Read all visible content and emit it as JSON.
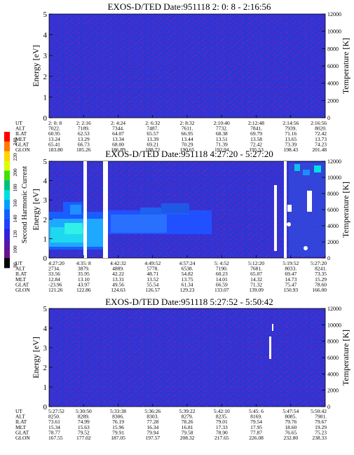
{
  "colorbar": {
    "label": "Second Harmonic Current",
    "ticks": [
      "240",
      "220",
      "200",
      "180",
      "160",
      "140",
      "120",
      "100",
      "80"
    ],
    "colors": [
      "#ff0000",
      "#ff7a00",
      "#ffd400",
      "#d8ff00",
      "#40e000",
      "#00c080",
      "#00e0e0",
      "#00a0ff",
      "#1060ff",
      "#2040ff",
      "#3020e0",
      "#501ab0",
      "#6a1090",
      "#000000"
    ]
  },
  "chart_data": [
    {
      "type": "heatmap",
      "title": "EXOS-D/TED   Date:951118  2: 0: 8 - 2:16:56",
      "ylabel": "Energy [eV]",
      "ylabel_right": "Temperature [K]",
      "ylim": [
        0,
        5
      ],
      "ylim_right": [
        0,
        12000
      ],
      "yticks": [
        "0",
        "1",
        "2",
        "3",
        "4",
        "5"
      ],
      "yticks_right": [
        "0",
        "2000",
        "4000",
        "6000",
        "8000",
        "10000",
        "12000"
      ],
      "table": {
        "rows": [
          "UT",
          "ALT",
          "ILAT",
          "MLT",
          "GLAT",
          "GLON"
        ],
        "columns": [
          [
            "2: 0: 8",
            "7022.",
            "60.95",
            "13.24",
            "65.41",
            "183.80"
          ],
          [
            "2: 2:16",
            "7189.",
            "62.53",
            "13.29",
            "66.73",
            "185.26"
          ],
          [
            "2: 4:24",
            "7344.",
            "64.07",
            "13.34",
            "68.00",
            "186.89"
          ],
          [
            "2: 6:32",
            "7487.",
            "65.57",
            "13.39",
            "69.21",
            "188.72"
          ],
          [
            "2: 8:32",
            "7611.",
            "66.95",
            "13.44",
            "70.29",
            "190.65"
          ],
          [
            "2:10:40",
            "7732.",
            "68.38",
            "13.51",
            "71.39",
            "192.94"
          ],
          [
            "2:12:48",
            "7841.",
            "69.79",
            "13.58",
            "72.42",
            "195.53"
          ],
          [
            "2:14:56",
            "7939.",
            "71.16",
            "13.65",
            "73.39",
            "198.43"
          ],
          [
            "2:16:56",
            "8020.",
            "72.42",
            "13.73",
            "74.23",
            "201.48"
          ]
        ]
      }
    },
    {
      "type": "heatmap",
      "title": "EXOS-D/TED   Date:951118   4:27:20 - 5:27:20",
      "ylabel": "Energy [eV]",
      "ylabel_right": "Temperature [K]",
      "ylim": [
        0,
        5
      ],
      "ylim_right": [
        0,
        12000
      ],
      "yticks": [
        "0",
        "1",
        "2",
        "3",
        "4",
        "5"
      ],
      "yticks_right": [
        "0",
        "2000",
        "4000",
        "6000",
        "8000",
        "10000",
        "12000"
      ],
      "table": {
        "rows": [
          "UT",
          "ALT",
          "ILAT",
          "MLT",
          "GLAT",
          "GLON"
        ],
        "columns": [
          [
            "4:27:20",
            "2734.",
            "33.56",
            "12.84",
            "-23.96",
            "121.26"
          ],
          [
            "4:35: 8",
            "3879.",
            "35.95",
            "13.10",
            "43.97",
            "122.86"
          ],
          [
            "4:42:32",
            "4889.",
            "42.22",
            "13.31",
            "49.56",
            "124.63"
          ],
          [
            "4:49:52",
            "5778.",
            "48.71",
            "13.52",
            "55.54",
            "126.57"
          ],
          [
            "4:57:24",
            "6538.",
            "54.82",
            "13.75",
            "61.34",
            "129.23"
          ],
          [
            "5: 4:52",
            "7190.",
            "60.23",
            "14.01",
            "66.59",
            "133.07"
          ],
          [
            "5:12:20",
            "7681.",
            "65.07",
            "14.32",
            "71.32",
            "139.09"
          ],
          [
            "5:19:52",
            "8033.",
            "69.47",
            "14.73",
            "75.47",
            "150.93"
          ],
          [
            "5:27:20",
            "8241.",
            "73.35",
            "15.29",
            "78.60",
            "166.00"
          ]
        ]
      }
    },
    {
      "type": "heatmap",
      "title": "EXOS-D/TED   Date:951118   5:27:52 - 5:50:42",
      "ylabel": "Energy [eV]",
      "ylabel_right": "Temperature [K]",
      "ylim": [
        0,
        5
      ],
      "ylim_right": [
        0,
        12000
      ],
      "yticks": [
        "0",
        "1",
        "2",
        "3",
        "4",
        "5"
      ],
      "yticks_right": [
        "0",
        "2000",
        "4000",
        "6000",
        "8000",
        "10000",
        "12000"
      ],
      "table": {
        "rows": [
          "UT",
          "ALT",
          "ILAT",
          "MLT",
          "GLAT",
          "GLON"
        ],
        "columns": [
          [
            "5:27:52",
            "8250.",
            "73.61",
            "15.34",
            "78.77",
            "167.55"
          ],
          [
            "5:30:50",
            "8289.",
            "74.99",
            "15.63",
            "79.52",
            "177.02"
          ],
          [
            "5:33:38",
            "8306.",
            "76.19",
            "15.96",
            "79.91",
            "187.05"
          ],
          [
            "5:36:26",
            "8303.",
            "77.28",
            "16.34",
            "79.94",
            "197.57"
          ],
          [
            "5:39:22",
            "8279.",
            "78.26",
            "16.81",
            "79.58",
            "208.32"
          ],
          [
            "5:42:10",
            "8235.",
            "79.01",
            "17.33",
            "78.90",
            "217.65"
          ],
          [
            "5:45: 6",
            "8169.",
            "79.54",
            "17.95",
            "77.87",
            "226.08"
          ],
          [
            "5:47:54",
            "8085.",
            "79.76",
            "18.60",
            "76.65",
            "232.80"
          ],
          [
            "5:50:42",
            "7981.",
            "79.67",
            "19.29",
            "75.23",
            "238.33"
          ]
        ]
      }
    }
  ]
}
